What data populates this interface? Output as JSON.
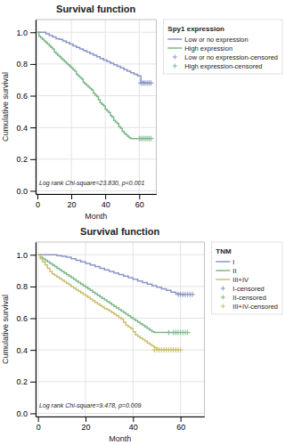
{
  "chart_data": [
    {
      "type": "step",
      "title": "Survival function",
      "x_label": "Month",
      "y_label": "Cumulative survival",
      "xlim": [
        -1,
        70
      ],
      "ylim": [
        -0.02,
        1.08
      ],
      "xticks": [
        0,
        20,
        40,
        60
      ],
      "yticks": [
        {
          "value": 0.0,
          "label": "0.0"
        },
        0.2,
        0.4,
        0.6,
        0.8,
        {
          "value": 1.0,
          "label": "1.0"
        }
      ],
      "grid": true,
      "legend": "right",
      "legend_title": "Spy1 expression",
      "annotations": [
        "Log rank Chi-square=23.830, p<0.001"
      ],
      "series": [
        {
          "name": "Low or no expression",
          "color": "#8a96c8",
          "x": [
            0,
            3,
            5,
            7,
            9,
            11,
            13,
            15,
            17,
            19,
            21,
            23,
            25,
            27,
            29,
            31,
            33,
            35,
            37,
            39,
            41,
            43,
            45,
            47,
            49,
            51,
            53,
            55,
            57,
            59,
            61,
            63
          ],
          "values": [
            1.0,
            1.0,
            0.99,
            0.98,
            0.97,
            0.96,
            0.955,
            0.945,
            0.935,
            0.925,
            0.915,
            0.905,
            0.895,
            0.885,
            0.875,
            0.865,
            0.855,
            0.845,
            0.835,
            0.825,
            0.815,
            0.805,
            0.795,
            0.785,
            0.775,
            0.765,
            0.755,
            0.745,
            0.735,
            0.725,
            0.685,
            0.68
          ]
        },
        {
          "name": "High expression",
          "color": "#7ab88a",
          "x": [
            0,
            1,
            2,
            3,
            4,
            5,
            6,
            7,
            8,
            9,
            10,
            11,
            12,
            13,
            14,
            15,
            16,
            17,
            18,
            19,
            20,
            21,
            22,
            23,
            24,
            25,
            26,
            27,
            28,
            29,
            30,
            31,
            32,
            33,
            34,
            35,
            36,
            37,
            38,
            39,
            40,
            41,
            42,
            43,
            44,
            45,
            46,
            47,
            48,
            49,
            50,
            51,
            52,
            53,
            54,
            55,
            56,
            57,
            58,
            59
          ],
          "values": [
            1.0,
            0.975,
            0.965,
            0.955,
            0.945,
            0.935,
            0.925,
            0.915,
            0.905,
            0.895,
            0.875,
            0.865,
            0.855,
            0.845,
            0.835,
            0.825,
            0.815,
            0.805,
            0.795,
            0.785,
            0.775,
            0.765,
            0.755,
            0.735,
            0.725,
            0.715,
            0.705,
            0.685,
            0.675,
            0.665,
            0.655,
            0.645,
            0.635,
            0.615,
            0.605,
            0.595,
            0.575,
            0.555,
            0.545,
            0.535,
            0.515,
            0.505,
            0.495,
            0.475,
            0.465,
            0.445,
            0.435,
            0.425,
            0.405,
            0.395,
            0.375,
            0.365,
            0.355,
            0.345,
            0.335,
            0.33,
            0.33,
            0.33,
            0.33,
            0.33
          ]
        },
        {
          "name": "Low or no expression-censored",
          "type": "scatter",
          "marker": "plus",
          "color": "#8a96c8",
          "x": [
            61,
            62,
            63,
            64,
            65,
            66,
            67
          ],
          "values": [
            0.68,
            0.68,
            0.68,
            0.68,
            0.68,
            0.68,
            0.68
          ]
        },
        {
          "name": "High expression-censored",
          "type": "scatter",
          "marker": "plus",
          "color": "#7ab88a",
          "x": [
            60,
            61,
            62,
            63,
            64,
            65,
            66,
            67
          ],
          "values": [
            0.33,
            0.33,
            0.33,
            0.33,
            0.33,
            0.33,
            0.33,
            0.33
          ]
        }
      ]
    },
    {
      "type": "step",
      "title": "Survival function",
      "x_label": "Month",
      "y_label": "Cumulative survival",
      "xlim": [
        -1,
        70
      ],
      "ylim": [
        -0.02,
        1.08
      ],
      "xticks": [
        0,
        20,
        40,
        60
      ],
      "yticks": [
        {
          "value": 0.0,
          "label": "0.0"
        },
        0.2,
        0.4,
        0.6,
        0.8,
        {
          "value": 1.0,
          "label": "1.0"
        }
      ],
      "grid": true,
      "legend": "right",
      "legend_title": "TNM",
      "annotations": [
        "Log rank Chi-square=9.478, p=0.009"
      ],
      "series": [
        {
          "name": "I",
          "color": "#8a96c8",
          "x": [
            0,
            2,
            4,
            6,
            8,
            10,
            12,
            14,
            16,
            18,
            20,
            22,
            24,
            26,
            28,
            30,
            32,
            34,
            36,
            38,
            40,
            42,
            44,
            46,
            48,
            50,
            52,
            54,
            56,
            58,
            60,
            62
          ],
          "values": [
            1.0,
            1.0,
            1.0,
            1.0,
            0.995,
            0.99,
            0.985,
            0.975,
            0.965,
            0.955,
            0.945,
            0.935,
            0.925,
            0.915,
            0.905,
            0.895,
            0.885,
            0.875,
            0.865,
            0.855,
            0.845,
            0.835,
            0.825,
            0.815,
            0.805,
            0.795,
            0.785,
            0.775,
            0.765,
            0.755,
            0.75,
            0.75
          ]
        },
        {
          "name": "II",
          "color": "#7ab88a",
          "x": [
            0,
            1,
            2,
            3,
            4,
            5,
            6,
            7,
            8,
            9,
            10,
            11,
            12,
            13,
            14,
            15,
            16,
            17,
            18,
            19,
            20,
            21,
            22,
            23,
            24,
            25,
            26,
            27,
            28,
            29,
            30,
            31,
            32,
            33,
            34,
            35,
            36,
            37,
            38,
            39,
            40,
            41,
            42,
            43,
            44,
            45,
            46,
            47,
            48,
            49,
            50,
            51,
            52,
            53,
            54,
            55,
            56,
            57,
            58,
            59
          ],
          "values": [
            1.0,
            0.985,
            0.975,
            0.965,
            0.955,
            0.945,
            0.935,
            0.925,
            0.915,
            0.905,
            0.895,
            0.885,
            0.875,
            0.865,
            0.855,
            0.845,
            0.835,
            0.825,
            0.815,
            0.805,
            0.795,
            0.785,
            0.775,
            0.765,
            0.755,
            0.745,
            0.735,
            0.725,
            0.715,
            0.705,
            0.695,
            0.685,
            0.675,
            0.665,
            0.655,
            0.645,
            0.635,
            0.625,
            0.615,
            0.605,
            0.595,
            0.585,
            0.575,
            0.565,
            0.555,
            0.545,
            0.535,
            0.525,
            0.515,
            0.51,
            0.51,
            0.51,
            0.51,
            0.51,
            0.51,
            0.51,
            0.51,
            0.51,
            0.51,
            0.51
          ]
        },
        {
          "name": "III+IV",
          "color": "#c8c070",
          "x": [
            0,
            1,
            2,
            3,
            4,
            5,
            6,
            7,
            8,
            9,
            10,
            11,
            12,
            13,
            14,
            15,
            16,
            17,
            18,
            19,
            20,
            21,
            22,
            23,
            24,
            25,
            26,
            27,
            28,
            29,
            30,
            31,
            32,
            33,
            34,
            35,
            36,
            37,
            38,
            39,
            40,
            41,
            42,
            43,
            44,
            45,
            46,
            47,
            48,
            49,
            50,
            51,
            52,
            53,
            54,
            55,
            56,
            57,
            58,
            59
          ],
          "values": [
            1.0,
            0.975,
            0.955,
            0.935,
            0.915,
            0.895,
            0.88,
            0.87,
            0.86,
            0.85,
            0.84,
            0.83,
            0.82,
            0.81,
            0.8,
            0.79,
            0.78,
            0.77,
            0.76,
            0.75,
            0.74,
            0.73,
            0.72,
            0.71,
            0.7,
            0.69,
            0.68,
            0.67,
            0.66,
            0.655,
            0.645,
            0.635,
            0.625,
            0.615,
            0.605,
            0.595,
            0.575,
            0.555,
            0.545,
            0.535,
            0.515,
            0.495,
            0.485,
            0.475,
            0.465,
            0.455,
            0.445,
            0.435,
            0.425,
            0.415,
            0.405,
            0.4,
            0.4,
            0.4,
            0.4,
            0.4,
            0.4,
            0.4,
            0.4,
            0.4
          ]
        },
        {
          "name": "I-censored",
          "type": "scatter",
          "marker": "plus",
          "color": "#8a96c8",
          "x": [
            59,
            60,
            61,
            62,
            63,
            64,
            65
          ],
          "values": [
            0.75,
            0.75,
            0.75,
            0.75,
            0.75,
            0.75,
            0.75
          ]
        },
        {
          "name": "II-censored",
          "type": "scatter",
          "marker": "plus",
          "color": "#7ab88a",
          "x": [
            55,
            57,
            58,
            59,
            60,
            61,
            62,
            63
          ],
          "values": [
            0.51,
            0.51,
            0.51,
            0.51,
            0.51,
            0.51,
            0.51,
            0.51
          ]
        },
        {
          "name": "III+IV-censored",
          "type": "scatter",
          "marker": "plus",
          "color": "#c8c070",
          "x": [
            49,
            50,
            51,
            52,
            53,
            54,
            55,
            56,
            57,
            58,
            59,
            60
          ],
          "values": [
            0.4,
            0.4,
            0.4,
            0.4,
            0.4,
            0.4,
            0.4,
            0.4,
            0.4,
            0.4,
            0.4,
            0.4
          ]
        }
      ]
    }
  ]
}
